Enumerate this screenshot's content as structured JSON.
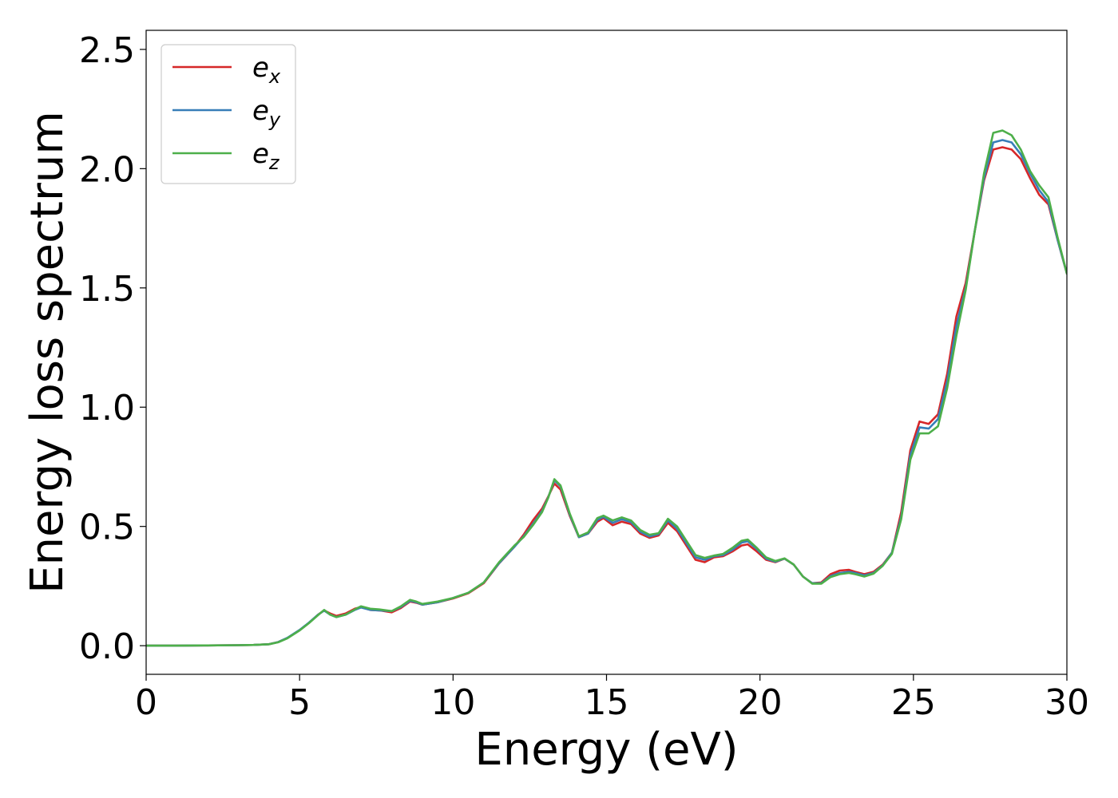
{
  "chart_data": {
    "type": "line",
    "title": "",
    "xlabel": "Energy (eV)",
    "ylabel": "Energy loss spectrum",
    "xlim": [
      0,
      30
    ],
    "ylim": [
      -0.12,
      2.58
    ],
    "xticks": [
      0,
      5,
      10,
      15,
      20,
      25,
      30
    ],
    "yticks": [
      0.0,
      0.5,
      1.0,
      1.5,
      2.0,
      2.5
    ],
    "xtick_labels": [
      "0",
      "5",
      "10",
      "15",
      "20",
      "25",
      "30"
    ],
    "ytick_labels": [
      "0.0",
      "0.5",
      "1.0",
      "1.5",
      "2.0",
      "2.5"
    ],
    "grid": false,
    "legend_position": "top-left",
    "x": [
      0,
      1,
      2,
      3,
      3.5,
      4,
      4.3,
      4.6,
      5,
      5.3,
      5.6,
      5.8,
      6,
      6.2,
      6.5,
      6.8,
      7,
      7.3,
      7.6,
      8,
      8.3,
      8.6,
      8.8,
      9,
      9.5,
      10,
      10.5,
      11,
      11.5,
      12,
      12.3,
      12.6,
      12.9,
      13.1,
      13.3,
      13.5,
      13.8,
      14.1,
      14.4,
      14.7,
      14.9,
      15.2,
      15.5,
      15.8,
      16.1,
      16.4,
      16.7,
      17,
      17.3,
      17.6,
      17.9,
      18.2,
      18.5,
      18.8,
      19.1,
      19.4,
      19.6,
      19.9,
      20.2,
      20.5,
      20.8,
      21.1,
      21.4,
      21.7,
      22,
      22.3,
      22.6,
      22.9,
      23.1,
      23.4,
      23.7,
      24,
      24.3,
      24.6,
      24.9,
      25.2,
      25.5,
      25.8,
      26.1,
      26.4,
      26.7,
      27,
      27.3,
      27.6,
      27.9,
      28.2,
      28.5,
      28.8,
      29.1,
      29.4,
      29.7,
      30
    ],
    "series": [
      {
        "name": "ex",
        "color": "#d62728",
        "values": [
          0,
          0,
          0.001,
          0.002,
          0.003,
          0.006,
          0.015,
          0.032,
          0.065,
          0.095,
          0.13,
          0.148,
          0.135,
          0.125,
          0.135,
          0.155,
          0.162,
          0.15,
          0.148,
          0.14,
          0.158,
          0.185,
          0.18,
          0.172,
          0.182,
          0.198,
          0.22,
          0.262,
          0.345,
          0.415,
          0.465,
          0.525,
          0.575,
          0.625,
          0.68,
          0.655,
          0.545,
          0.455,
          0.47,
          0.52,
          0.535,
          0.505,
          0.52,
          0.51,
          0.47,
          0.452,
          0.462,
          0.515,
          0.48,
          0.42,
          0.36,
          0.35,
          0.37,
          0.375,
          0.395,
          0.42,
          0.425,
          0.395,
          0.36,
          0.35,
          0.365,
          0.34,
          0.29,
          0.262,
          0.265,
          0.3,
          0.315,
          0.318,
          0.31,
          0.3,
          0.31,
          0.34,
          0.39,
          0.56,
          0.82,
          0.94,
          0.93,
          0.97,
          1.14,
          1.38,
          1.52,
          1.74,
          1.95,
          2.08,
          2.09,
          2.08,
          2.04,
          1.96,
          1.89,
          1.85,
          1.7,
          1.56
        ]
      },
      {
        "name": "ey",
        "color": "#377eb8",
        "values": [
          0,
          0,
          0.001,
          0.002,
          0.003,
          0.006,
          0.015,
          0.033,
          0.066,
          0.096,
          0.13,
          0.147,
          0.13,
          0.12,
          0.13,
          0.15,
          0.16,
          0.15,
          0.148,
          0.145,
          0.162,
          0.188,
          0.182,
          0.172,
          0.182,
          0.2,
          0.222,
          0.265,
          0.346,
          0.415,
          0.458,
          0.51,
          0.565,
          0.622,
          0.693,
          0.668,
          0.55,
          0.455,
          0.47,
          0.528,
          0.54,
          0.515,
          0.53,
          0.518,
          0.478,
          0.458,
          0.468,
          0.525,
          0.49,
          0.43,
          0.37,
          0.36,
          0.375,
          0.38,
          0.402,
          0.432,
          0.438,
          0.405,
          0.365,
          0.352,
          0.365,
          0.34,
          0.29,
          0.262,
          0.262,
          0.292,
          0.305,
          0.31,
          0.305,
          0.295,
          0.305,
          0.337,
          0.39,
          0.54,
          0.8,
          0.915,
          0.91,
          0.95,
          1.11,
          1.34,
          1.5,
          1.74,
          1.96,
          2.11,
          2.12,
          2.11,
          2.06,
          1.98,
          1.91,
          1.86,
          1.7,
          1.56
        ]
      },
      {
        "name": "ez",
        "color": "#4daf4a",
        "values": [
          0,
          0,
          0.001,
          0.002,
          0.003,
          0.006,
          0.014,
          0.031,
          0.064,
          0.094,
          0.128,
          0.15,
          0.13,
          0.12,
          0.13,
          0.152,
          0.165,
          0.155,
          0.152,
          0.145,
          0.165,
          0.192,
          0.185,
          0.175,
          0.185,
          0.2,
          0.222,
          0.265,
          0.35,
          0.42,
          0.455,
          0.505,
          0.56,
          0.62,
          0.698,
          0.672,
          0.555,
          0.458,
          0.475,
          0.535,
          0.545,
          0.525,
          0.538,
          0.525,
          0.485,
          0.465,
          0.472,
          0.532,
          0.5,
          0.44,
          0.38,
          0.368,
          0.378,
          0.385,
          0.41,
          0.44,
          0.445,
          0.41,
          0.37,
          0.355,
          0.366,
          0.34,
          0.29,
          0.26,
          0.26,
          0.288,
          0.3,
          0.305,
          0.3,
          0.29,
          0.302,
          0.335,
          0.385,
          0.53,
          0.78,
          0.89,
          0.89,
          0.92,
          1.08,
          1.3,
          1.49,
          1.74,
          1.98,
          2.15,
          2.16,
          2.14,
          2.08,
          1.99,
          1.93,
          1.88,
          1.71,
          1.56
        ]
      }
    ],
    "legend": [
      {
        "base": "e",
        "sub": "x",
        "color": "#d62728"
      },
      {
        "base": "e",
        "sub": "y",
        "color": "#377eb8"
      },
      {
        "base": "e",
        "sub": "z",
        "color": "#4daf4a"
      }
    ]
  }
}
